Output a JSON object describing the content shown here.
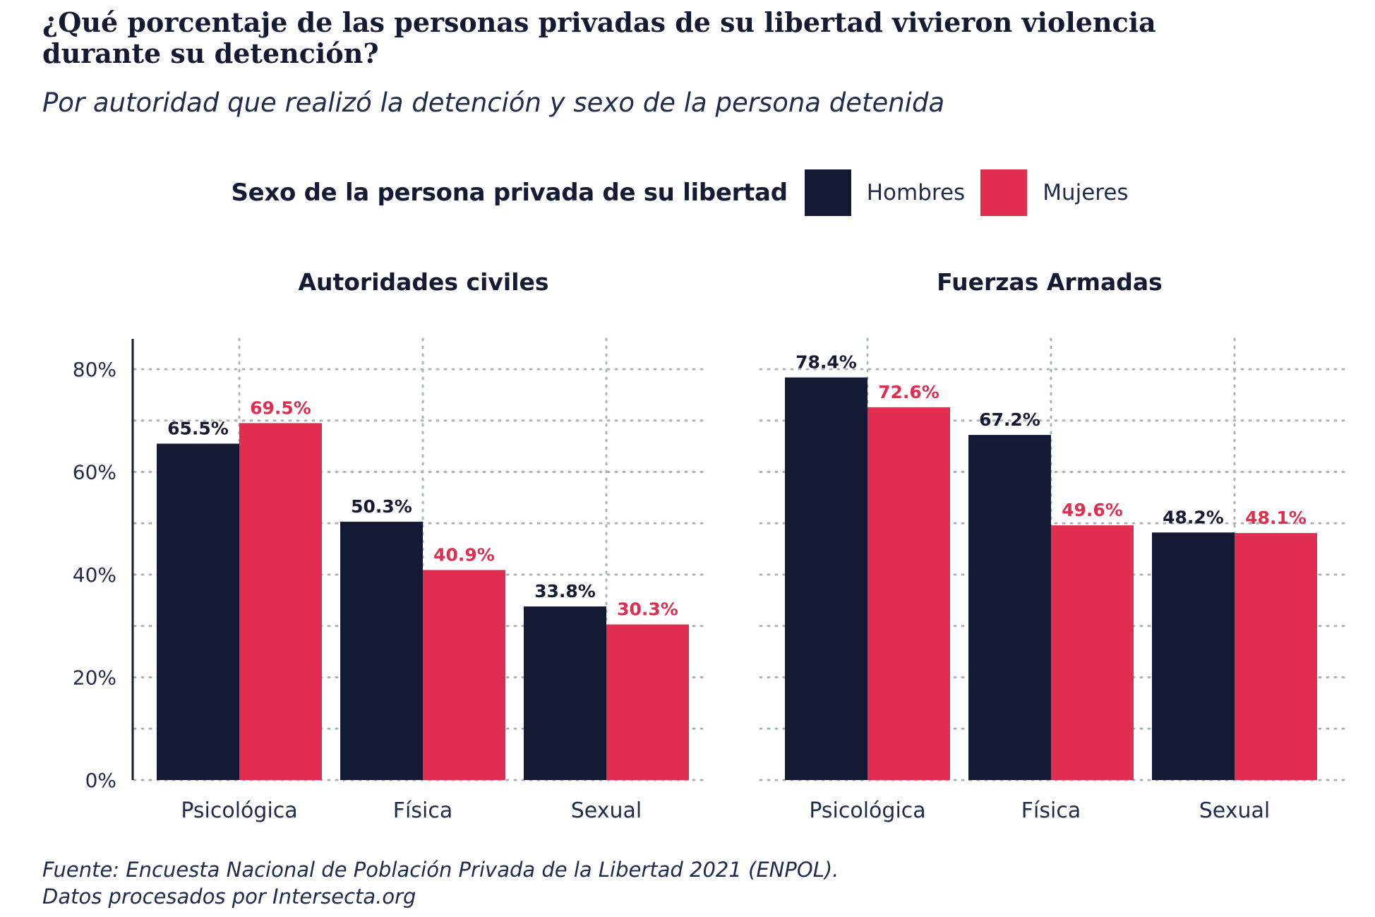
{
  "title": "¿Qué porcentaje de las personas privadas de su libertad vivieron violencia durante su detención?",
  "subtitle": "Por autoridad que realizó la detención y sexo de la persona detenida",
  "legend": {
    "title": "Sexo de la persona privada de su libertad",
    "items": [
      {
        "label": "Hombres",
        "color": "#141a33"
      },
      {
        "label": "Mujeres",
        "color": "#e12d4f"
      }
    ]
  },
  "caption": {
    "line1": "Fuente: Encuesta Nacional de Población Privada de la Libertad 2021 (ENPOL).",
    "line2": "Datos procesados por Intersecta.org"
  },
  "chart_data": [
    {
      "type": "bar",
      "title": "Autoridades civiles",
      "categories": [
        "Psicológica",
        "Física",
        "Sexual"
      ],
      "series": [
        {
          "name": "Hombres",
          "color": "#141a33",
          "values": [
            65.5,
            50.3,
            33.8
          ],
          "labels": [
            "65.5%",
            "50.3%",
            "33.8%"
          ]
        },
        {
          "name": "Mujeres",
          "color": "#e12d4f",
          "values": [
            69.5,
            40.9,
            30.3
          ],
          "labels": [
            "69.5%",
            "40.9%",
            "30.3%"
          ]
        }
      ],
      "ylim": [
        0,
        80
      ],
      "yticks": [
        "0%",
        "20%",
        "40%",
        "60%",
        "80%"
      ],
      "grid": true
    },
    {
      "type": "bar",
      "title": "Fuerzas Armadas",
      "categories": [
        "Psicológica",
        "Física",
        "Sexual"
      ],
      "series": [
        {
          "name": "Hombres",
          "color": "#141a33",
          "values": [
            78.4,
            67.2,
            48.2
          ],
          "labels": [
            "78.4%",
            "67.2%",
            "48.2%"
          ]
        },
        {
          "name": "Mujeres",
          "color": "#e12d4f",
          "values": [
            72.6,
            49.6,
            48.1
          ],
          "labels": [
            "72.6%",
            "49.6%",
            "48.1%"
          ]
        }
      ],
      "ylim": [
        0,
        80
      ],
      "grid": true
    }
  ]
}
